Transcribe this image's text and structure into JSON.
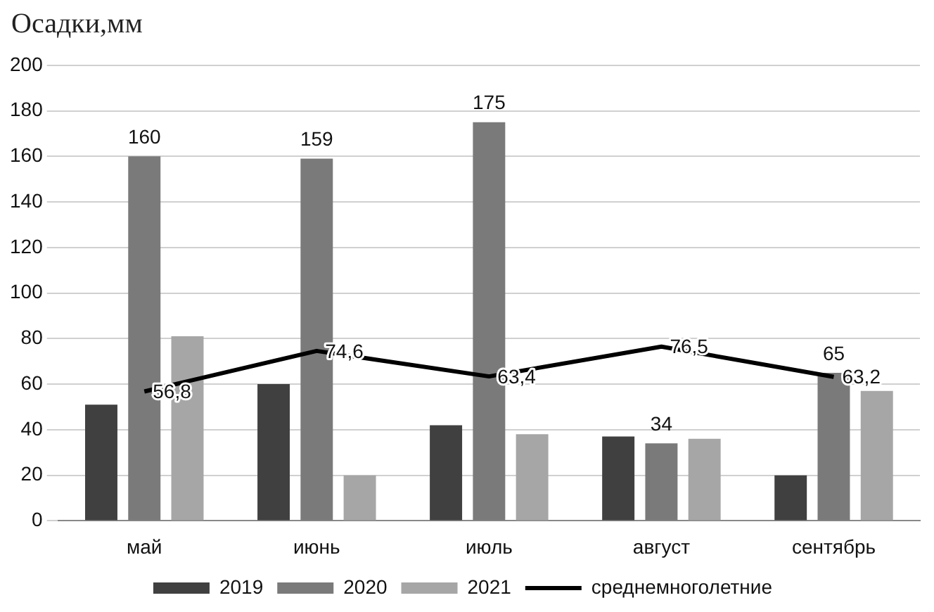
{
  "chart_data": {
    "type": "bar",
    "title": "Осадки,мм",
    "categories": [
      "май",
      "июнь",
      "июль",
      "август",
      "сентябрь"
    ],
    "series": [
      {
        "name": "2019",
        "color": "#404040",
        "values": [
          51,
          60,
          42,
          37,
          20
        ]
      },
      {
        "name": "2020",
        "color": "#7a7a7a",
        "values": [
          160,
          159,
          175,
          34,
          65
        ],
        "value_labels": [
          "160",
          "159",
          "175",
          "34",
          "65"
        ]
      },
      {
        "name": "2021",
        "color": "#a6a6a6",
        "values": [
          81,
          20,
          38,
          36,
          57
        ]
      },
      {
        "name": "среднемноголетние",
        "type": "line",
        "color": "#000000",
        "values": [
          56.8,
          74.6,
          63.4,
          76.5,
          63.2
        ],
        "value_labels": [
          "56,8",
          "74,6",
          "63,4",
          "76,5",
          "63,2"
        ]
      }
    ],
    "ylim": [
      0,
      200
    ],
    "yticks": [
      0,
      20,
      40,
      60,
      80,
      100,
      120,
      140,
      160,
      180,
      200
    ],
    "grid": "y",
    "legend": "bottom",
    "marker": "none"
  }
}
